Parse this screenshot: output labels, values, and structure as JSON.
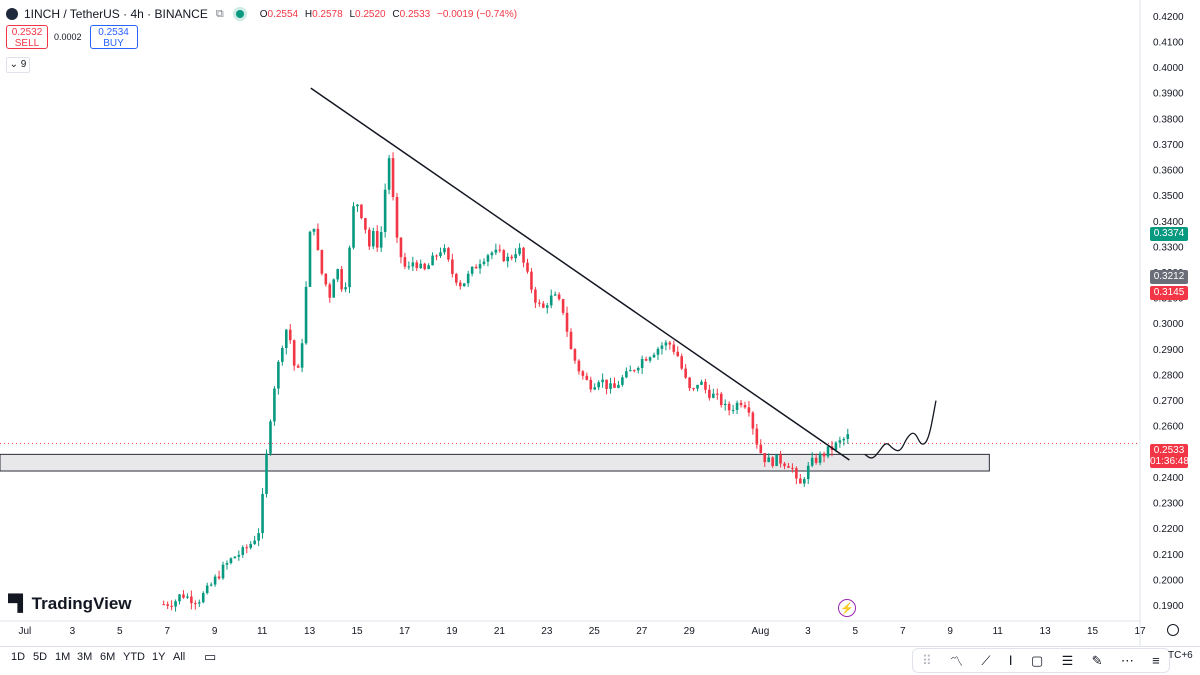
{
  "header": {
    "symbol": "1INCH / TetherUS · 4h · BINANCE",
    "ohlc": {
      "o_label": "O",
      "o": "0.2554",
      "h_label": "H",
      "h": "0.2578",
      "l_label": "L",
      "l": "0.2520",
      "c_label": "C",
      "c": "0.2533",
      "change": "−0.0019 (−0.74%)"
    }
  },
  "trade": {
    "sell_price": "0.2532",
    "sell_label": "SELL",
    "spread": "0.0002",
    "buy_price": "0.2534",
    "buy_label": "BUY"
  },
  "indicators_count": "9",
  "brand": "TradingView",
  "timeframes": [
    "1D",
    "5D",
    "1M",
    "3M",
    "6M",
    "YTD",
    "1Y",
    "All"
  ],
  "timezone": "TC+6",
  "price_labels": {
    "green": "0.3374",
    "gray": "0.3212",
    "red": "0.3145",
    "last": "0.2533",
    "countdown": "01:36:48"
  },
  "colors": {
    "up": "#089981",
    "down": "#f23645",
    "accent": "#2962ff"
  },
  "chart_data": {
    "type": "candlestick",
    "y_ticks": [
      "0.4200",
      "0.4100",
      "0.4000",
      "0.3900",
      "0.3800",
      "0.3700",
      "0.3600",
      "0.3500",
      "0.3400",
      "0.3300",
      "0.3200",
      "0.3100",
      "0.3000",
      "0.2900",
      "0.2800",
      "0.2700",
      "0.2600",
      "0.2500",
      "0.2400",
      "0.2300",
      "0.2200",
      "0.2100",
      "0.2000",
      "0.1900"
    ],
    "ylim": [
      0.1855,
      0.4225
    ],
    "x_ticks": [
      {
        "label": "Jul",
        "day": 1
      },
      {
        "label": "3",
        "day": 3
      },
      {
        "label": "5",
        "day": 5
      },
      {
        "label": "7",
        "day": 7
      },
      {
        "label": "9",
        "day": 9
      },
      {
        "label": "11",
        "day": 11
      },
      {
        "label": "13",
        "day": 13
      },
      {
        "label": "15",
        "day": 15
      },
      {
        "label": "17",
        "day": 17
      },
      {
        "label": "19",
        "day": 19
      },
      {
        "label": "21",
        "day": 21
      },
      {
        "label": "23",
        "day": 23
      },
      {
        "label": "25",
        "day": 25
      },
      {
        "label": "27",
        "day": 27
      },
      {
        "label": "29",
        "day": 29
      },
      {
        "label": "Aug",
        "day": 32
      },
      {
        "label": "3",
        "day": 34
      },
      {
        "label": "5",
        "day": 36
      },
      {
        "label": "7",
        "day": 38
      },
      {
        "label": "9",
        "day": 40
      },
      {
        "label": "11",
        "day": 42
      },
      {
        "label": "13",
        "day": 44
      },
      {
        "label": "15",
        "day": 46
      },
      {
        "label": "17",
        "day": 48
      }
    ],
    "xlim": [
      -0.05,
      48.0
    ],
    "price_path": [
      [
        6.85,
        0.1905
      ],
      [
        7.3,
        0.1915
      ],
      [
        7.6,
        0.1945
      ],
      [
        7.9,
        0.193
      ],
      [
        8.3,
        0.192
      ],
      [
        8.7,
        0.196
      ],
      [
        9.0,
        0.2
      ],
      [
        9.4,
        0.205
      ],
      [
        9.8,
        0.209
      ],
      [
        10.2,
        0.211
      ],
      [
        10.6,
        0.215
      ],
      [
        10.9,
        0.22
      ],
      [
        11.1,
        0.24
      ],
      [
        11.3,
        0.26
      ],
      [
        11.5,
        0.275
      ],
      [
        11.7,
        0.285
      ],
      [
        11.9,
        0.295
      ],
      [
        12.1,
        0.3
      ],
      [
        12.3,
        0.285
      ],
      [
        12.5,
        0.28
      ],
      [
        12.7,
        0.295
      ],
      [
        12.9,
        0.32
      ],
      [
        13.1,
        0.345
      ],
      [
        13.3,
        0.33
      ],
      [
        13.5,
        0.32
      ],
      [
        13.7,
        0.315
      ],
      [
        13.9,
        0.31
      ],
      [
        14.1,
        0.325
      ],
      [
        14.3,
        0.315
      ],
      [
        14.5,
        0.315
      ],
      [
        14.7,
        0.33
      ],
      [
        14.9,
        0.35
      ],
      [
        15.1,
        0.345
      ],
      [
        15.3,
        0.34
      ],
      [
        15.5,
        0.33
      ],
      [
        15.7,
        0.335
      ],
      [
        15.9,
        0.33
      ],
      [
        16.1,
        0.34
      ],
      [
        16.3,
        0.37
      ],
      [
        16.5,
        0.35
      ],
      [
        16.7,
        0.33
      ],
      [
        16.9,
        0.325
      ],
      [
        17.1,
        0.32
      ],
      [
        17.4,
        0.325
      ],
      [
        17.8,
        0.32
      ],
      [
        18.2,
        0.325
      ],
      [
        18.6,
        0.33
      ],
      [
        19.0,
        0.32
      ],
      [
        19.4,
        0.315
      ],
      [
        19.8,
        0.32
      ],
      [
        20.2,
        0.325
      ],
      [
        20.6,
        0.328
      ],
      [
        21.0,
        0.327
      ],
      [
        21.4,
        0.325
      ],
      [
        21.8,
        0.33
      ],
      [
        22.2,
        0.318
      ],
      [
        22.5,
        0.31
      ],
      [
        22.8,
        0.305
      ],
      [
        23.1,
        0.31
      ],
      [
        23.4,
        0.31
      ],
      [
        23.7,
        0.305
      ],
      [
        24.0,
        0.29
      ],
      [
        24.3,
        0.283
      ],
      [
        24.6,
        0.278
      ],
      [
        24.9,
        0.276
      ],
      [
        25.2,
        0.279
      ],
      [
        25.5,
        0.276
      ],
      [
        25.8,
        0.274
      ],
      [
        26.1,
        0.278
      ],
      [
        26.4,
        0.28
      ],
      [
        26.7,
        0.283
      ],
      [
        27.0,
        0.286
      ],
      [
        27.3,
        0.288
      ],
      [
        27.6,
        0.29
      ],
      [
        27.9,
        0.292
      ],
      [
        28.2,
        0.292
      ],
      [
        28.5,
        0.288
      ],
      [
        28.8,
        0.279
      ],
      [
        29.1,
        0.272
      ],
      [
        29.4,
        0.278
      ],
      [
        29.7,
        0.274
      ],
      [
        30.0,
        0.272
      ],
      [
        30.3,
        0.27
      ],
      [
        30.6,
        0.266
      ],
      [
        30.9,
        0.268
      ],
      [
        31.2,
        0.27
      ],
      [
        31.5,
        0.268
      ],
      [
        31.8,
        0.255
      ],
      [
        32.1,
        0.248
      ],
      [
        32.4,
        0.246
      ],
      [
        32.7,
        0.247
      ],
      [
        33.0,
        0.246
      ],
      [
        33.3,
        0.245
      ],
      [
        33.6,
        0.235
      ],
      [
        33.9,
        0.242
      ],
      [
        34.2,
        0.246
      ],
      [
        34.5,
        0.248
      ],
      [
        34.8,
        0.25
      ],
      [
        35.1,
        0.252
      ],
      [
        35.4,
        0.254
      ],
      [
        35.7,
        0.256
      ]
    ],
    "annotations": {
      "trendline": {
        "start": [
          13.05,
          0.392
        ],
        "end": [
          35.75,
          0.2468
        ]
      },
      "support_zone": {
        "from_day": -0.05,
        "to_day": 41.65,
        "low": 0.2425,
        "high": 0.249
      },
      "projection_path": [
        [
          36.4,
          0.249
        ],
        [
          36.7,
          0.247
        ],
        [
          37.0,
          0.25
        ],
        [
          37.3,
          0.254
        ],
        [
          37.6,
          0.251
        ],
        [
          37.9,
          0.25
        ],
        [
          38.2,
          0.256
        ],
        [
          38.5,
          0.258
        ],
        [
          38.8,
          0.252
        ],
        [
          39.1,
          0.255
        ],
        [
          39.4,
          0.27
        ]
      ]
    }
  }
}
